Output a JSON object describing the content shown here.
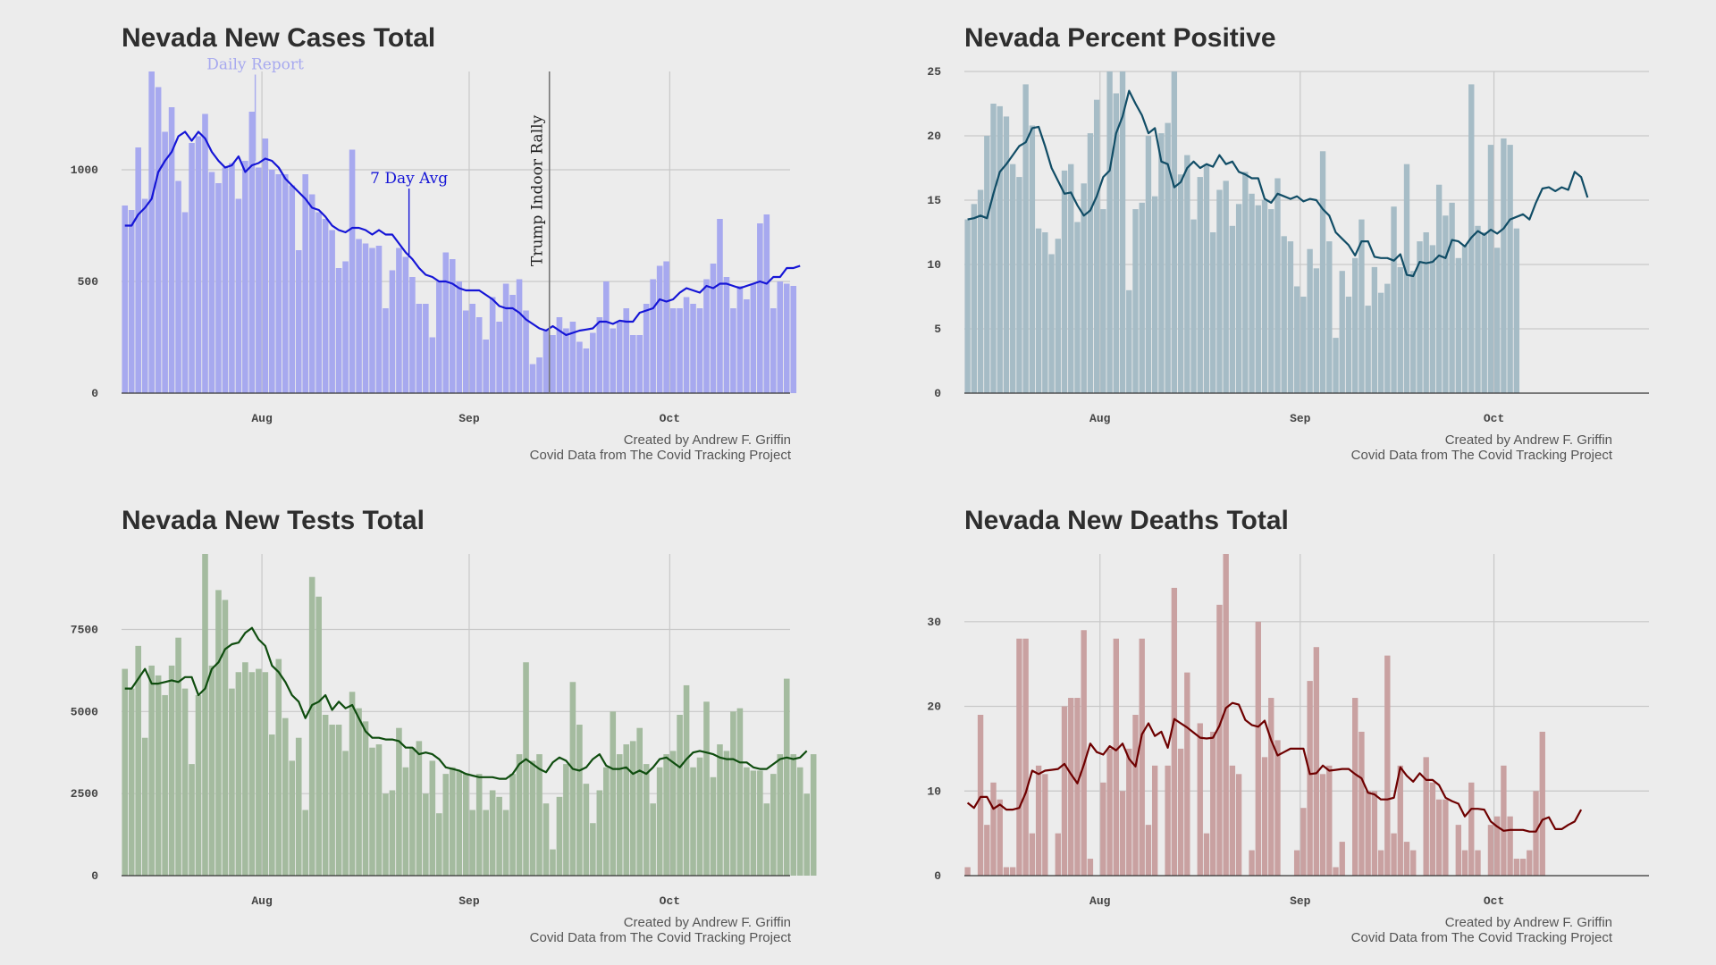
{
  "credit": {
    "line1": "Created by Andrew F. Griffin",
    "line2": "Covid Data from The Covid Tracking Project"
  },
  "chart_data": [
    {
      "type": "bar",
      "title": "Nevada New Cases Total",
      "x_start": "2020-07-11",
      "x_end": "2020-10-19",
      "xticks": [
        {
          "date": "2020-08-01",
          "label": "Aug"
        },
        {
          "date": "2020-09-01",
          "label": "Sep"
        },
        {
          "date": "2020-10-01",
          "label": "Oct"
        }
      ],
      "ylim": [
        0,
        1440
      ],
      "yticks": [
        0,
        500,
        1000
      ],
      "grid": true,
      "bar_color": "#a7a9ef",
      "line_color": "#1515d6",
      "bar_start_date": "2020-07-11",
      "series": [
        {
          "name": "Daily Report",
          "values": [
            840,
            820,
            1100,
            870,
            1440,
            1370,
            1170,
            1280,
            950,
            810,
            1120,
            1150,
            1250,
            990,
            940,
            1010,
            1030,
            870,
            1040,
            1260,
            1010,
            1140,
            1000,
            980,
            980,
            930,
            640,
            980,
            890,
            810,
            780,
            730,
            560,
            590,
            1090,
            690,
            670,
            650,
            660,
            380,
            550,
            650,
            610,
            520,
            400,
            400,
            250,
            500,
            630,
            600,
            500,
            370,
            400,
            340,
            240,
            430,
            320,
            490,
            440,
            510,
            370,
            130,
            160,
            280,
            260,
            340,
            290,
            320,
            230,
            200,
            270,
            340,
            500,
            290,
            320,
            380,
            260,
            260,
            400,
            510,
            570,
            590,
            380,
            380,
            430,
            400,
            380,
            510,
            580,
            780,
            520,
            380,
            480,
            420,
            490,
            760,
            800,
            380,
            500,
            490,
            480
          ]
        },
        {
          "name": "7 Day Avg",
          "values": [
            750,
            750,
            800,
            830,
            870,
            990,
            1040,
            1080,
            1150,
            1170,
            1130,
            1170,
            1140,
            1080,
            1040,
            1010,
            1020,
            1060,
            990,
            1020,
            1030,
            1050,
            1040,
            1010,
            960,
            930,
            900,
            870,
            830,
            820,
            790,
            750,
            730,
            720,
            740,
            740,
            730,
            710,
            730,
            710,
            710,
            670,
            630,
            600,
            560,
            530,
            520,
            500,
            500,
            490,
            470,
            460,
            460,
            460,
            440,
            420,
            390,
            380,
            380,
            360,
            330,
            310,
            290,
            280,
            300,
            280,
            260,
            270,
            280,
            285,
            290,
            320,
            320,
            310,
            325,
            320,
            320,
            360,
            370,
            380,
            420,
            410,
            420,
            450,
            470,
            460,
            450,
            480,
            470,
            490,
            490,
            480,
            470,
            480,
            490,
            500,
            490,
            520,
            520,
            560,
            560,
            570
          ]
        }
      ],
      "annotations": [
        {
          "text": "Daily Report",
          "date": "2020-07-31",
          "value": 1370,
          "color": "#a7a9ef"
        },
        {
          "text": "7 Day Avg",
          "date": "2020-08-23",
          "value": 860,
          "color": "#1515d6"
        },
        {
          "text": "Trump Indoor Rally",
          "date": "2020-09-13",
          "orientation": "vertical",
          "color": "#222222"
        }
      ]
    },
    {
      "type": "bar",
      "title": "Nevada Percent Positive",
      "x_start": "2020-07-11",
      "x_end": "2020-10-25",
      "xticks": [
        {
          "date": "2020-08-01",
          "label": "Aug"
        },
        {
          "date": "2020-09-01",
          "label": "Sep"
        },
        {
          "date": "2020-10-01",
          "label": "Oct"
        }
      ],
      "ylim": [
        0,
        25
      ],
      "yticks": [
        0,
        5,
        10,
        15,
        20,
        25
      ],
      "grid": true,
      "bar_color": "#a6bcc6",
      "line_color": "#114d66",
      "bar_start_date": "2020-07-11",
      "series": [
        {
          "values": [
            13.5,
            14.7,
            15.8,
            20,
            22.5,
            22.3,
            21.5,
            17.8,
            16.8,
            24,
            20.8,
            12.8,
            12.5,
            10.8,
            12,
            17.3,
            17.8,
            13.3,
            16.3,
            20.2,
            22.8,
            14.3,
            25,
            23.3,
            25,
            8,
            14.3,
            14.8,
            20,
            15.3,
            20.2,
            21,
            25,
            17,
            18.5,
            13.5,
            16.8,
            17.8,
            12.5,
            15.8,
            16.5,
            13,
            14.7,
            17.2,
            15.5,
            14.6,
            15,
            14.3,
            16.7,
            12.2,
            11.8,
            8.3,
            7.5,
            11.2,
            9.7,
            18.8,
            11.8,
            4.3,
            9.5,
            7.5,
            10.5,
            13.5,
            6.8,
            9.8,
            7.8,
            8.5,
            14.5,
            9.8,
            17.8,
            9.5,
            11.8,
            12.5,
            11.5,
            16.2,
            13.8,
            14.8,
            10.5,
            11.5,
            24,
            13,
            12.5,
            19.3,
            11.3,
            19.8,
            19.3,
            12.8
          ]
        },
        {
          "values": [
            13.5,
            13.6,
            13.8,
            13.6,
            15.5,
            17.2,
            17.8,
            18.5,
            19.2,
            19.5,
            20.6,
            20.7,
            19.2,
            17.5,
            16.5,
            15.5,
            15.6,
            14.6,
            13.8,
            14.2,
            15.3,
            16.8,
            17.3,
            20.2,
            21.5,
            23.5,
            22.5,
            21.6,
            20.2,
            20.6,
            18,
            17.8,
            16,
            16.4,
            17.5,
            18,
            17.5,
            17.8,
            17.6,
            18.5,
            17.8,
            18,
            17.2,
            17,
            16.7,
            16.7,
            15.1,
            14.8,
            15.5,
            15.3,
            15.1,
            15.3,
            14.9,
            15.1,
            15,
            14.3,
            13.8,
            12.5,
            12,
            11.5,
            10.7,
            11.8,
            11.8,
            10.6,
            10.5,
            10.5,
            10.3,
            10.8,
            9.2,
            9.1,
            10.2,
            10.1,
            10.2,
            10.7,
            10.5,
            11.9,
            11.8,
            11.4,
            12.1,
            12.6,
            12.3,
            12.7,
            12.4,
            12.8,
            13.5,
            13.7,
            13.9,
            13.5,
            14.8,
            15.9,
            16,
            15.7,
            16,
            15.8,
            17.2,
            16.8,
            15.2
          ]
        }
      ]
    },
    {
      "type": "bar",
      "title": "Nevada New Tests Total",
      "x_start": "2020-07-11",
      "x_end": "2020-10-19",
      "xticks": [
        {
          "date": "2020-08-01",
          "label": "Aug"
        },
        {
          "date": "2020-09-01",
          "label": "Sep"
        },
        {
          "date": "2020-10-01",
          "label": "Oct"
        }
      ],
      "ylim": [
        0,
        9800
      ],
      "yticks": [
        0,
        2500,
        5000,
        7500
      ],
      "grid": true,
      "bar_color": "#a4bb9f",
      "line_color": "#0f4d0f",
      "bar_start_date": "2020-07-11",
      "series": [
        {
          "values": [
            6300,
            5700,
            7000,
            4200,
            6400,
            6100,
            5500,
            6400,
            7250,
            5700,
            3400,
            5500,
            9800,
            6400,
            8700,
            8400,
            5700,
            6200,
            6500,
            6200,
            6300,
            6200,
            4300,
            6600,
            4800,
            3500,
            4200,
            2000,
            9100,
            8500,
            4900,
            4600,
            4600,
            3800,
            5600,
            5100,
            4700,
            3900,
            4000,
            2500,
            2600,
            4500,
            3300,
            3900,
            4100,
            2500,
            3500,
            1900,
            3100,
            3300,
            3200,
            3100,
            2000,
            3100,
            2000,
            2600,
            2400,
            2000,
            3100,
            3700,
            6500,
            3500,
            3700,
            2200,
            800,
            2400,
            3400,
            5900,
            4600,
            2800,
            1600,
            2600,
            3300,
            5000,
            3700,
            4000,
            4100,
            4500,
            3400,
            2200,
            3300,
            3700,
            3800,
            4900,
            5800,
            3300,
            3600,
            5300,
            3000,
            4000,
            3800,
            5000,
            5100,
            3300,
            3200,
            3200,
            2200,
            3100,
            3700,
            6000,
            3700,
            3300,
            2500,
            3700
          ]
        },
        {
          "values": [
            5700,
            5700,
            6000,
            6300,
            5850,
            5850,
            5900,
            5950,
            5900,
            6050,
            6050,
            5500,
            5700,
            6300,
            6500,
            6900,
            7050,
            7100,
            7400,
            7550,
            7200,
            7000,
            6400,
            6200,
            5900,
            5500,
            5300,
            4800,
            5200,
            5300,
            5500,
            5050,
            5300,
            5100,
            5200,
            4800,
            4400,
            4200,
            4200,
            4150,
            4150,
            4100,
            3900,
            3900,
            3700,
            3750,
            3700,
            3550,
            3300,
            3250,
            3200,
            3100,
            3050,
            3000,
            3000,
            3000,
            2950,
            2950,
            3100,
            3400,
            3550,
            3400,
            3250,
            3150,
            3450,
            3600,
            3500,
            3250,
            3200,
            3300,
            3550,
            3700,
            3350,
            3250,
            3250,
            3300,
            3100,
            3200,
            3100,
            3300,
            3550,
            3600,
            3450,
            3300,
            3550,
            3750,
            3800,
            3750,
            3700,
            3600,
            3550,
            3550,
            3450,
            3450,
            3300,
            3250,
            3250,
            3400,
            3550,
            3600,
            3550,
            3600,
            3800
          ]
        }
      ]
    },
    {
      "type": "bar",
      "title": "Nevada New Deaths Total",
      "x_start": "2020-07-11",
      "x_end": "2020-10-25",
      "xticks": [
        {
          "date": "2020-08-01",
          "label": "Aug"
        },
        {
          "date": "2020-09-01",
          "label": "Sep"
        },
        {
          "date": "2020-10-01",
          "label": "Oct"
        }
      ],
      "ylim": [
        0,
        38
      ],
      "yticks": [
        0,
        10,
        20,
        30
      ],
      "grid": true,
      "bar_color": "#c9a1a1",
      "line_color": "#6e0000",
      "bar_start_date": "2020-07-11",
      "series": [
        {
          "values": [
            1,
            0,
            19,
            6,
            11,
            9,
            1,
            1,
            28,
            28,
            5,
            13,
            12,
            0,
            5,
            20,
            21,
            21,
            29,
            2,
            0,
            11,
            15,
            28,
            10,
            15,
            19,
            28,
            6,
            13,
            0,
            13,
            34,
            15,
            24,
            0,
            18,
            5,
            17,
            32,
            38,
            13,
            12,
            0,
            3,
            30,
            14,
            21,
            16,
            0,
            0,
            3,
            8,
            23,
            27,
            12,
            13,
            1,
            4,
            0,
            21,
            17,
            10,
            10,
            3,
            26,
            5,
            13,
            4,
            3,
            0,
            14,
            11,
            9,
            9,
            0,
            6,
            3,
            11,
            3,
            0,
            6,
            7,
            13,
            7,
            2,
            2,
            3,
            10,
            17
          ]
        },
        {
          "values": [
            8.6,
            8,
            9.3,
            9.3,
            7.9,
            8.4,
            7.8,
            7.8,
            8,
            9.8,
            12.4,
            12,
            12.4,
            12.5,
            12.6,
            13.2,
            12,
            10.9,
            13.1,
            15.6,
            14.6,
            14.3,
            15.3,
            14.8,
            15.6,
            13.8,
            12.9,
            16.7,
            18,
            16.5,
            17,
            15.1,
            18.5,
            18,
            17.5,
            16.9,
            16.3,
            16.2,
            16.3,
            17.7,
            19.8,
            20.4,
            20.2,
            18.4,
            17.8,
            17.6,
            18.3,
            16,
            14.2,
            14.6,
            15,
            15,
            15,
            12,
            12.1,
            13,
            12.4,
            12.5,
            12.6,
            12.6,
            12,
            11.5,
            9.8,
            9.6,
            9,
            9,
            9.2,
            12.8,
            11.8,
            11.1,
            12.1,
            11.3,
            11.3,
            10.7,
            9.2,
            8.8,
            8.5,
            7,
            7.9,
            7.9,
            7.8,
            6.4,
            5.8,
            5.3,
            5.4,
            5.4,
            5.4,
            5.2,
            5.2,
            6.6,
            6.9,
            5.5,
            5.5,
            6,
            6.4,
            7.8
          ]
        }
      ]
    }
  ]
}
